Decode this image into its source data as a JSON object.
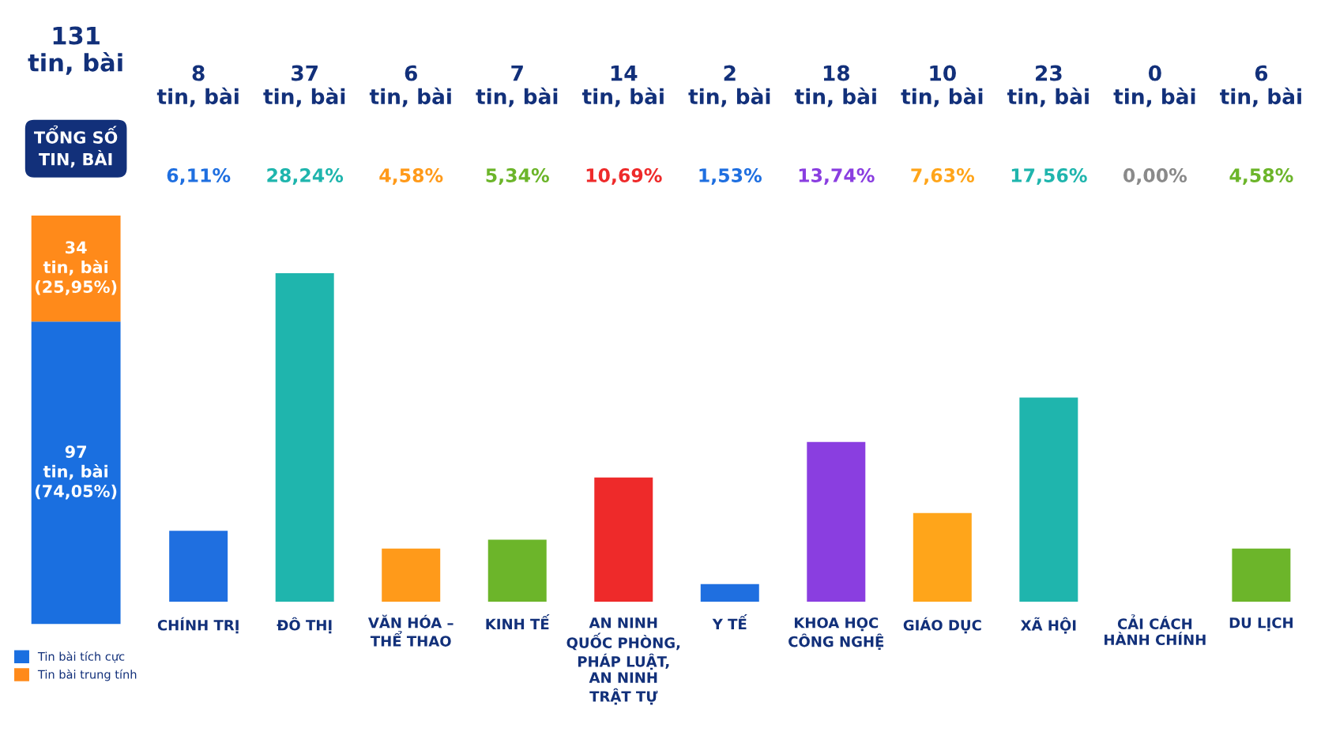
{
  "chart_data": [
    {
      "type": "bar",
      "title": "131\ntin, bài",
      "subtitle": "TỔNG SỐ\nTIN, BÀI",
      "categories": [
        null
      ],
      "stacked": true,
      "legend": "bottom",
      "series": [
        {
          "name": "Tin bài tích cực",
          "color": "#1a6fe0",
          "values": [
            97
          ],
          "value_labels": [
            "97\ntin, bài\n(74,05%)"
          ]
        },
        {
          "name": "Tin bài trung tính",
          "color": "#ff8a1a",
          "values": [
            34
          ],
          "value_labels": [
            "34\ntin, bài\n(25,95%)"
          ]
        }
      ]
    },
    {
      "type": "bar",
      "categories": [
        "CHÍNH TRỊ",
        "ĐÔ THỊ",
        "VĂN HÓA –\nTHỂ THAO",
        "KINH TẾ",
        "AN NINH\nQUỐC PHÒNG,\nPHÁP LUẬT,\nAN NINH\nTRẬT TỰ",
        "Y TẾ",
        "KHOA HỌC\nCÔNG NGHỆ",
        "GIÁO DỤC",
        "XÃ HỘI",
        "CẢI CÁCH\nHÀNH CHÍNH",
        "DU LỊCH"
      ],
      "values": [
        8,
        37,
        6,
        7,
        14,
        2,
        18,
        10,
        23,
        0,
        6
      ],
      "colors": [
        "#1f6fe0",
        "#1fb5ad",
        "#ff9a1a",
        "#6cb52a",
        "#ee2a2a",
        "#1f6fe0",
        "#8a3ee0",
        "#ffa51a",
        "#1fb5ad",
        "#8a8a8a",
        "#6cb52a"
      ],
      "value_labels": [
        "8\ntin, bài",
        "37\ntin, bài",
        "6\ntin, bài",
        "7\ntin, bài",
        "14\ntin, bài",
        "2\ntin, bài",
        "18\ntin, bài",
        "10\ntin, bài",
        "23\ntin, bài",
        "0\ntin, bài",
        "6\ntin, bài"
      ],
      "annotations": [
        "6,11%",
        "28,24%",
        "4,58%",
        "5,34%",
        "10,69%",
        "1,53%",
        "13,74%",
        "7,63%",
        "17,56%",
        "0,00%",
        "4,58%"
      ]
    }
  ]
}
